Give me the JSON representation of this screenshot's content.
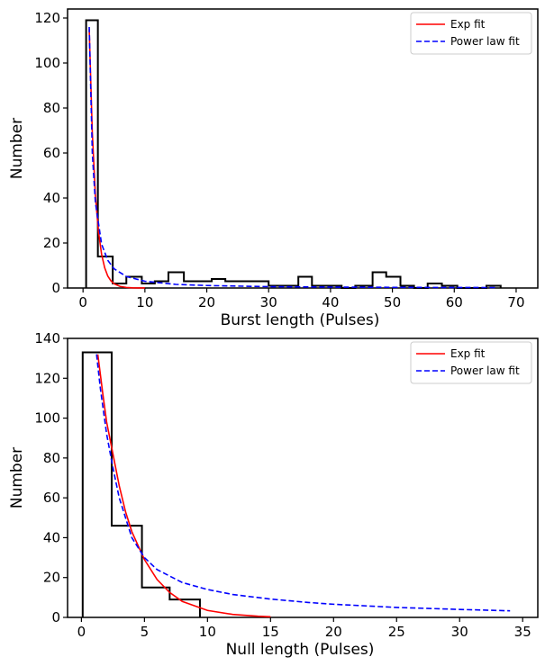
{
  "chart_data": [
    {
      "type": "histogram",
      "title": "",
      "xlabel": "Burst length (Pulses)",
      "ylabel": "Number",
      "xlim": [
        -2.5,
        73.5
      ],
      "ylim": [
        0,
        124
      ],
      "xticks": [
        0,
        10,
        20,
        30,
        40,
        50,
        60,
        70
      ],
      "yticks": [
        0,
        20,
        40,
        60,
        80,
        100,
        120
      ],
      "legend_position": "top-right",
      "bins": [
        {
          "x0": 0.5,
          "x1": 2.4,
          "value": 119
        },
        {
          "x0": 2.4,
          "x1": 4.8,
          "value": 14
        },
        {
          "x0": 4.8,
          "x1": 7.0,
          "value": 2
        },
        {
          "x0": 7.0,
          "x1": 9.5,
          "value": 5
        },
        {
          "x0": 9.5,
          "x1": 11.6,
          "value": 2
        },
        {
          "x0": 11.6,
          "x1": 13.8,
          "value": 3
        },
        {
          "x0": 13.8,
          "x1": 16.3,
          "value": 7
        },
        {
          "x0": 16.3,
          "x1": 20.8,
          "value": 3
        },
        {
          "x0": 20.8,
          "x1": 23.0,
          "value": 4
        },
        {
          "x0": 23.0,
          "x1": 30.0,
          "value": 3
        },
        {
          "x0": 30.0,
          "x1": 34.8,
          "value": 1
        },
        {
          "x0": 34.8,
          "x1": 37.0,
          "value": 5
        },
        {
          "x0": 37.0,
          "x1": 41.8,
          "value": 1
        },
        {
          "x0": 41.8,
          "x1": 44.0,
          "value": 0
        },
        {
          "x0": 44.0,
          "x1": 46.8,
          "value": 1
        },
        {
          "x0": 46.8,
          "x1": 49.0,
          "value": 7
        },
        {
          "x0": 49.0,
          "x1": 51.3,
          "value": 5
        },
        {
          "x0": 51.3,
          "x1": 53.5,
          "value": 1
        },
        {
          "x0": 53.5,
          "x1": 55.7,
          "value": 0
        },
        {
          "x0": 55.7,
          "x1": 58.0,
          "value": 2
        },
        {
          "x0": 58.0,
          "x1": 60.5,
          "value": 1
        },
        {
          "x0": 60.5,
          "x1": 65.2,
          "value": 0
        },
        {
          "x0": 65.2,
          "x1": 67.5,
          "value": 1
        }
      ],
      "series": [
        {
          "name": "Exp fit",
          "color": "#ff0000",
          "style": "solid",
          "x": [
            1.0,
            1.5,
            2.0,
            2.5,
            3.0,
            3.5,
            4.0,
            4.5,
            5.0,
            6.0,
            7.0,
            8.0,
            9.0,
            10.0
          ],
          "y": [
            115,
            69,
            41,
            25,
            15,
            9,
            5.3,
            3.2,
            1.9,
            0.7,
            0.25,
            0.09,
            0.03,
            0.01
          ]
        },
        {
          "name": "Power law fit",
          "color": "#0000ff",
          "style": "dashed",
          "x": [
            1.0,
            1.5,
            2.0,
            3.0,
            4.0,
            5.0,
            7.0,
            10.0,
            15.0,
            20.0,
            30.0,
            40.0,
            50.0,
            60.0,
            67.0
          ],
          "y": [
            116,
            60,
            38,
            19.5,
            12.3,
            8.6,
            5.1,
            3.0,
            1.6,
            1.1,
            0.6,
            0.4,
            0.3,
            0.22,
            0.2
          ]
        }
      ]
    },
    {
      "type": "histogram",
      "title": "",
      "xlabel": "Null length (Pulses)",
      "ylabel": "Number",
      "xlim": [
        -1.1,
        36.2
      ],
      "ylim": [
        0,
        140
      ],
      "xticks": [
        0,
        5,
        10,
        15,
        20,
        25,
        30,
        35
      ],
      "yticks": [
        0,
        20,
        40,
        60,
        80,
        100,
        120,
        140
      ],
      "legend_position": "top-right",
      "bins": [
        {
          "x0": 0.1,
          "x1": 2.4,
          "value": 133
        },
        {
          "x0": 2.4,
          "x1": 4.8,
          "value": 46
        },
        {
          "x0": 4.8,
          "x1": 7.0,
          "value": 15
        },
        {
          "x0": 7.0,
          "x1": 9.4,
          "value": 9
        }
      ],
      "series": [
        {
          "name": "Exp fit",
          "color": "#ff0000",
          "style": "solid",
          "x": [
            1.3,
            1.7,
            2.0,
            2.5,
            3.0,
            3.5,
            4.0,
            5.0,
            6.0,
            7.0,
            8.0,
            10.0,
            12.0,
            14.0,
            15.0
          ],
          "y": [
            132,
            112,
            98,
            82,
            66,
            53,
            43,
            29,
            19,
            12.5,
            8,
            3.5,
            1.5,
            0.6,
            0.3
          ]
        },
        {
          "name": "Power law fit",
          "color": "#0000ff",
          "style": "dashed",
          "x": [
            1.2,
            1.5,
            2.0,
            2.5,
            3.0,
            4.0,
            5.0,
            6.0,
            8.0,
            10.0,
            12.0,
            15.0,
            18.0,
            20.0,
            25.0,
            30.0,
            34.0
          ],
          "y": [
            132,
            115,
            92,
            75,
            60,
            40,
            30,
            24,
            17.5,
            14,
            11.5,
            9.2,
            7.5,
            6.6,
            5,
            4,
            3.3
          ]
        }
      ]
    }
  ]
}
